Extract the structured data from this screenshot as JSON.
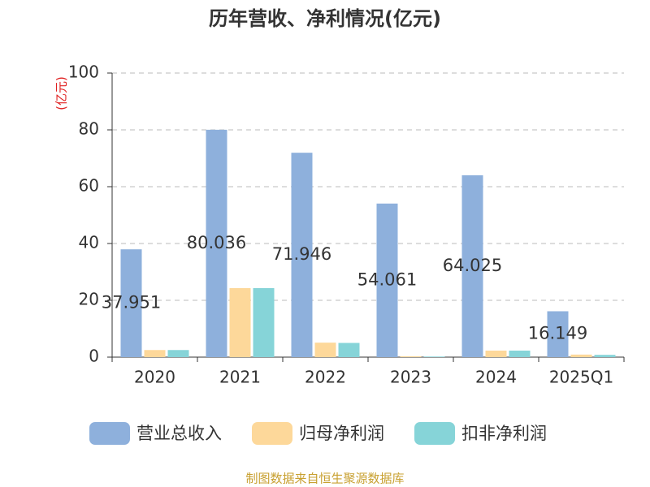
{
  "chart_data": {
    "type": "bar",
    "title": "历年营收、净利情况(亿元)",
    "y_axis_label": "(亿元)",
    "source": "制图数据来自恒生聚源数据库",
    "categories": [
      "2020",
      "2021",
      "2022",
      "2023",
      "2024",
      "2025Q1"
    ],
    "series": [
      {
        "name": "营业总收入",
        "color": "#8eb0dc",
        "values": [
          37.951,
          80.036,
          71.946,
          54.061,
          64.025,
          16.149
        ]
      },
      {
        "name": "归母净利润",
        "color": "#fdd89a",
        "values": [
          2.5,
          24.3,
          5.1,
          0.3,
          2.3,
          0.9
        ]
      },
      {
        "name": "扣非净利润",
        "color": "#86d4d8",
        "values": [
          2.5,
          24.3,
          5.0,
          0.2,
          2.3,
          0.8
        ]
      }
    ],
    "ylim": [
      0,
      100
    ],
    "yticks": [
      0,
      20,
      40,
      60,
      80,
      100
    ],
    "grid": true
  }
}
